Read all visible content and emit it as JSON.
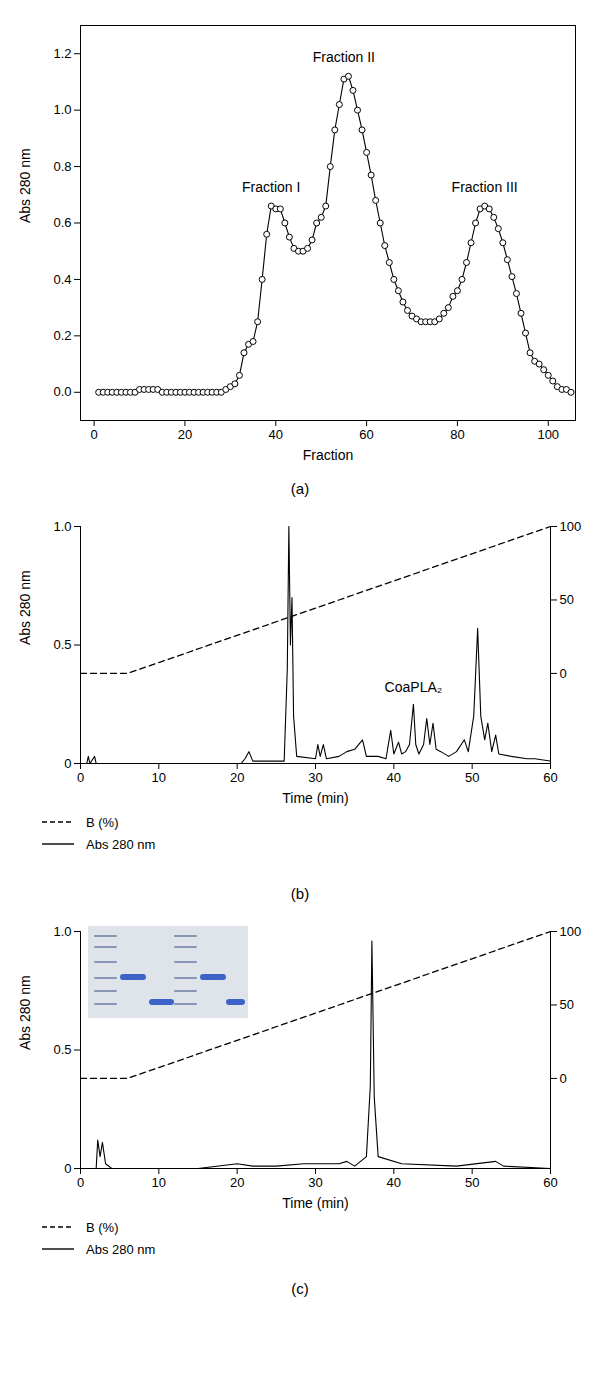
{
  "chart_data": [
    {
      "type": "line",
      "caption": "(a)",
      "x_label": "Fraction",
      "y_label": "Abs 280 nm",
      "x": [
        1,
        2,
        3,
        4,
        5,
        6,
        7,
        8,
        9,
        10,
        11,
        12,
        13,
        14,
        15,
        16,
        17,
        18,
        19,
        20,
        21,
        22,
        23,
        24,
        25,
        26,
        27,
        28,
        29,
        30,
        31,
        32,
        33,
        34,
        35,
        36,
        37,
        38,
        39,
        40,
        41,
        42,
        43,
        44,
        45,
        46,
        47,
        48,
        49,
        50,
        51,
        52,
        53,
        54,
        55,
        56,
        57,
        58,
        59,
        60,
        61,
        62,
        63,
        64,
        65,
        66,
        67,
        68,
        69,
        70,
        71,
        72,
        73,
        74,
        75,
        76,
        77,
        78,
        79,
        80,
        81,
        82,
        83,
        84,
        85,
        86,
        87,
        88,
        89,
        90,
        91,
        92,
        93,
        94,
        95,
        96,
        97,
        98,
        99,
        100,
        101,
        102,
        103,
        104,
        105
      ],
      "values": [
        0,
        0,
        0,
        0,
        0,
        0,
        0,
        0,
        0,
        0.01,
        0.01,
        0.01,
        0.01,
        0.01,
        0,
        0,
        0,
        0,
        0,
        0,
        0,
        0,
        0,
        0,
        0,
        0,
        0,
        0,
        0.01,
        0.02,
        0.03,
        0.06,
        0.14,
        0.17,
        0.18,
        0.25,
        0.4,
        0.56,
        0.66,
        0.65,
        0.65,
        0.6,
        0.55,
        0.51,
        0.5,
        0.5,
        0.51,
        0.54,
        0.6,
        0.62,
        0.66,
        0.8,
        0.93,
        1.02,
        1.11,
        1.12,
        1.07,
        1.0,
        0.93,
        0.85,
        0.77,
        0.68,
        0.6,
        0.52,
        0.46,
        0.4,
        0.36,
        0.32,
        0.29,
        0.27,
        0.26,
        0.25,
        0.25,
        0.25,
        0.25,
        0.26,
        0.28,
        0.3,
        0.34,
        0.36,
        0.4,
        0.46,
        0.53,
        0.6,
        0.65,
        0.66,
        0.65,
        0.62,
        0.58,
        0.53,
        0.47,
        0.41,
        0.35,
        0.28,
        0.21,
        0.14,
        0.11,
        0.1,
        0.08,
        0.06,
        0.04,
        0.02,
        0.01,
        0.01,
        0
      ],
      "color": "#000000",
      "marker": "circle",
      "line_style": "solid",
      "xlim": [
        -3,
        106
      ],
      "ylim": [
        -0.1,
        1.3
      ],
      "xticks": [
        0,
        20,
        40,
        60,
        80,
        100
      ],
      "yticks": [
        {
          "value": 0,
          "label": "0.0"
        },
        0.2,
        0.4,
        0.6,
        0.8,
        {
          "value": 1,
          "label": "1.0"
        },
        1.2
      ],
      "annotations": [
        {
          "text": "Fraction I",
          "x": 39,
          "y": 0.71
        },
        {
          "text": "Fraction II",
          "x": 55,
          "y": 1.17
        },
        {
          "text": "Fraction III",
          "x": 86,
          "y": 0.71
        }
      ]
    },
    {
      "type": "line",
      "caption": "(b)",
      "x_label": "Time (min)",
      "y_label": "Abs 280 nm",
      "legend": "bottom",
      "xlim": [
        0,
        60
      ],
      "ylim": [
        0,
        1
      ],
      "y2lim": [
        -61.3,
        100
      ],
      "xticks": [
        0,
        10,
        20,
        30,
        40,
        50,
        60
      ],
      "yticks": [
        0,
        0.5,
        {
          "value": 1,
          "label": "1.0"
        }
      ],
      "y2ticks": [
        0,
        50,
        100
      ],
      "series": [
        {
          "name": "B (%)",
          "color": "#000000",
          "line_style": "dashed",
          "axis": "y2",
          "x": [
            0,
            6,
            60
          ],
          "values": [
            0,
            0,
            100
          ]
        },
        {
          "name": "Abs 280 nm",
          "color": "#000000",
          "line_style": "solid",
          "x": [
            0,
            0.8,
            1,
            1.2,
            1.8,
            2,
            20.5,
            21,
            21.5,
            22,
            26,
            26.4,
            26.6,
            26.8,
            27,
            27.2,
            27.6,
            30,
            30.3,
            30.6,
            31,
            31.4,
            33,
            34,
            35,
            36,
            36.5,
            38,
            39,
            39.6,
            40,
            40.6,
            41,
            41.5,
            42,
            42.5,
            42.8,
            43.2,
            43.8,
            44.2,
            44.6,
            45,
            45.4,
            46,
            47,
            48,
            49,
            49.5,
            50.2,
            50.7,
            51.1,
            51.6,
            52,
            52.5,
            53,
            53.4,
            55,
            57,
            58,
            60
          ],
          "values": [
            0,
            0,
            0.03,
            0,
            0.03,
            0,
            0,
            0.02,
            0.05,
            0.01,
            0.01,
            0.4,
            1.0,
            0.5,
            0.7,
            0.2,
            0.03,
            0.02,
            0.08,
            0.03,
            0.08,
            0.02,
            0.03,
            0.05,
            0.06,
            0.1,
            0.03,
            0.03,
            0.02,
            0.14,
            0.04,
            0.09,
            0.04,
            0.05,
            0.08,
            0.25,
            0.08,
            0.04,
            0.08,
            0.19,
            0.08,
            0.17,
            0.06,
            0.05,
            0.03,
            0.05,
            0.1,
            0.05,
            0.2,
            0.57,
            0.2,
            0.1,
            0.17,
            0.05,
            0.12,
            0.04,
            0.03,
            0.02,
            0.02,
            0.01
          ]
        }
      ],
      "annotations": [
        {
          "text": "CoaPLA₂",
          "x": 42.5,
          "y": 0.3
        }
      ]
    },
    {
      "type": "line",
      "caption": "(c)",
      "x_label": "Time (min)",
      "y_label": "Abs 280 nm",
      "legend": "bottom",
      "xlim": [
        0,
        60
      ],
      "ylim": [
        0,
        1
      ],
      "y2lim": [
        -61.3,
        100
      ],
      "xticks": [
        0,
        10,
        20,
        30,
        40,
        50,
        60
      ],
      "yticks": [
        0,
        0.5,
        {
          "value": 1,
          "label": "1.0"
        }
      ],
      "y2ticks": [
        0,
        50,
        100
      ],
      "series": [
        {
          "name": "B (%)",
          "color": "#000000",
          "line_style": "dashed",
          "axis": "y2",
          "x": [
            0,
            6,
            60
          ],
          "values": [
            0,
            0,
            100
          ]
        },
        {
          "name": "Abs 280 nm",
          "color": "#000000",
          "line_style": "solid",
          "x": [
            0,
            2,
            2.2,
            2.5,
            2.8,
            3.2,
            4,
            15,
            20,
            22,
            25,
            28.5,
            33,
            34,
            35,
            36.5,
            37,
            37.2,
            37.5,
            38,
            41,
            48,
            53,
            54,
            60
          ],
          "values": [
            0,
            0,
            0.12,
            0.05,
            0.11,
            0.02,
            0,
            0,
            0.02,
            0.01,
            0.01,
            0.02,
            0.02,
            0.03,
            0.01,
            0.05,
            0.35,
            0.96,
            0.3,
            0.05,
            0.02,
            0.01,
            0.03,
            0.01,
            0
          ]
        }
      ]
    }
  ]
}
